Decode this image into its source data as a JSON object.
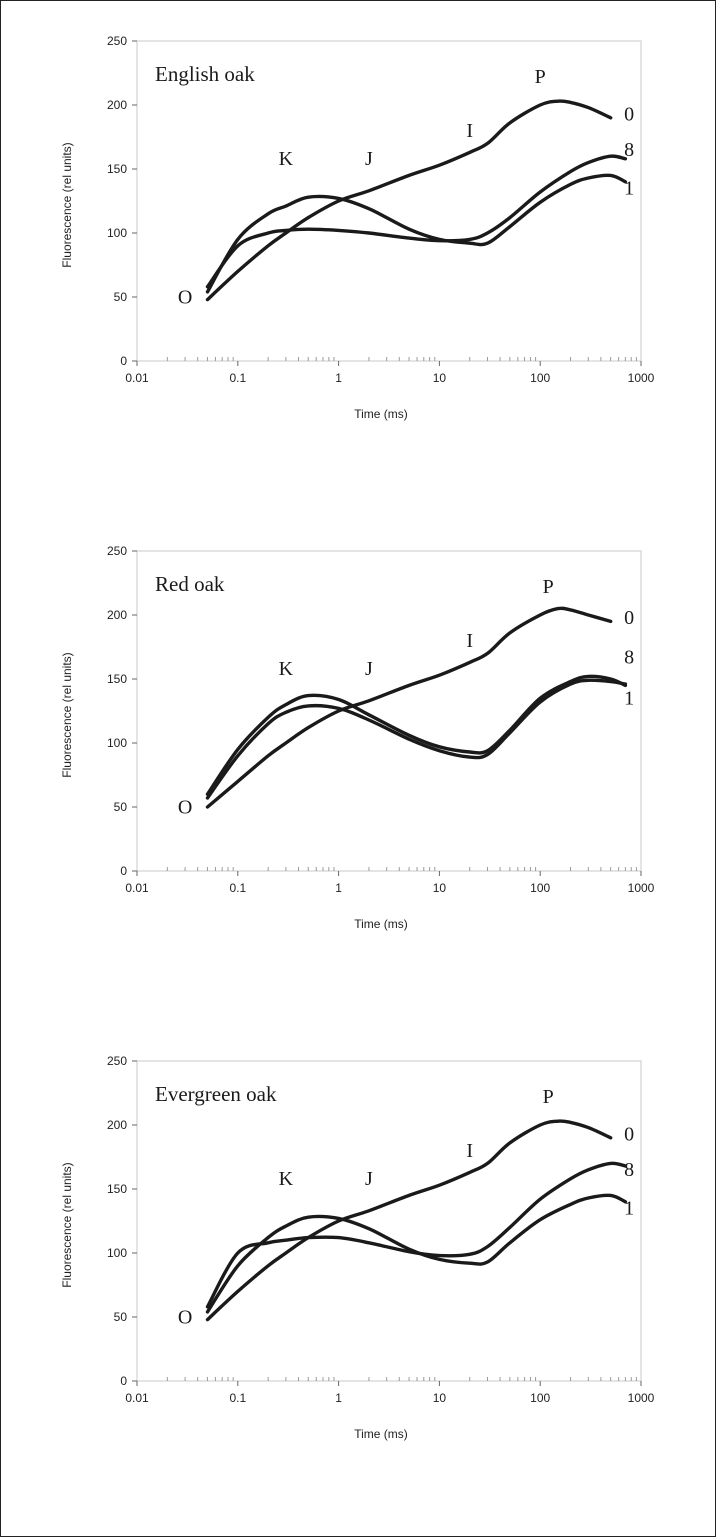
{
  "chart_data": [
    {
      "type": "line",
      "title": "English oak",
      "xlabel": "Time (ms)",
      "ylabel": "Fluorescence (rel units)",
      "x_scale": "log",
      "xlim": [
        0.01,
        1000
      ],
      "ylim": [
        0,
        250
      ],
      "x_ticks": [
        "0.01",
        "0.1",
        "1",
        "10",
        "100",
        "1000"
      ],
      "y_ticks": [
        "0",
        "50",
        "100",
        "150",
        "200",
        "250"
      ],
      "grid": false,
      "point_labels": [
        {
          "text": "O",
          "x": 0.03,
          "y": 45
        },
        {
          "text": "K",
          "x": 0.3,
          "y": 153
        },
        {
          "text": "J",
          "x": 2,
          "y": 153
        },
        {
          "text": "I",
          "x": 20,
          "y": 175
        },
        {
          "text": "P",
          "x": 100,
          "y": 217
        }
      ],
      "series_labels": [
        {
          "text": "0",
          "x": 680,
          "y": 188
        },
        {
          "text": "8",
          "x": 680,
          "y": 160
        },
        {
          "text": "1",
          "x": 680,
          "y": 130
        }
      ],
      "series": [
        {
          "name": "0",
          "x": [
            0.05,
            0.1,
            0.2,
            0.3,
            0.5,
            1,
            2,
            5,
            10,
            20,
            30,
            50,
            100,
            150,
            200,
            300,
            500
          ],
          "y": [
            48,
            70,
            90,
            100,
            112,
            125,
            133,
            145,
            153,
            163,
            170,
            186,
            200,
            203,
            202,
            198,
            190
          ]
        },
        {
          "name": "8",
          "x": [
            0.05,
            0.1,
            0.2,
            0.3,
            0.5,
            1,
            2,
            5,
            10,
            20,
            30,
            50,
            100,
            200,
            300,
            500,
            700
          ],
          "y": [
            58,
            90,
            100,
            102,
            103,
            102,
            100,
            96,
            94,
            95,
            100,
            112,
            132,
            148,
            155,
            160,
            158
          ]
        },
        {
          "name": "1",
          "x": [
            0.05,
            0.1,
            0.2,
            0.3,
            0.5,
            1,
            2,
            5,
            10,
            20,
            30,
            50,
            100,
            200,
            300,
            500,
            700
          ],
          "y": [
            54,
            95,
            115,
            121,
            128,
            127,
            119,
            103,
            95,
            92,
            92,
            105,
            124,
            138,
            143,
            145,
            140
          ]
        }
      ]
    },
    {
      "type": "line",
      "title": "Red oak",
      "xlabel": "Time (ms)",
      "ylabel": "Fluorescence (rel units)",
      "x_scale": "log",
      "xlim": [
        0.01,
        1000
      ],
      "ylim": [
        0,
        250
      ],
      "x_ticks": [
        "0.01",
        "0.1",
        "1",
        "10",
        "100",
        "1000"
      ],
      "y_ticks": [
        "0",
        "50",
        "100",
        "150",
        "200",
        "250"
      ],
      "grid": false,
      "point_labels": [
        {
          "text": "O",
          "x": 0.03,
          "y": 45
        },
        {
          "text": "K",
          "x": 0.3,
          "y": 153
        },
        {
          "text": "J",
          "x": 2,
          "y": 153
        },
        {
          "text": "I",
          "x": 20,
          "y": 175
        },
        {
          "text": "P",
          "x": 120,
          "y": 217
        }
      ],
      "series_labels": [
        {
          "text": "0",
          "x": 680,
          "y": 193
        },
        {
          "text": "8",
          "x": 680,
          "y": 162
        },
        {
          "text": "1",
          "x": 680,
          "y": 130
        }
      ],
      "series": [
        {
          "name": "0",
          "x": [
            0.05,
            0.1,
            0.2,
            0.3,
            0.5,
            1,
            2,
            5,
            10,
            20,
            30,
            50,
            100,
            150,
            200,
            300,
            500
          ],
          "y": [
            50,
            70,
            90,
            100,
            112,
            125,
            133,
            145,
            153,
            163,
            170,
            186,
            200,
            205,
            204,
            200,
            195
          ]
        },
        {
          "name": "8",
          "x": [
            0.05,
            0.1,
            0.2,
            0.3,
            0.5,
            1,
            2,
            5,
            10,
            20,
            30,
            50,
            100,
            200,
            300,
            500,
            700
          ],
          "y": [
            57,
            90,
            115,
            124,
            129,
            127,
            118,
            103,
            94,
            89,
            91,
            108,
            132,
            146,
            149,
            148,
            146
          ]
        },
        {
          "name": "1",
          "x": [
            0.05,
            0.1,
            0.2,
            0.3,
            0.5,
            1,
            2,
            5,
            10,
            20,
            30,
            50,
            100,
            200,
            300,
            500,
            700
          ],
          "y": [
            60,
            95,
            120,
            130,
            137,
            134,
            122,
            106,
            97,
            93,
            94,
            110,
            135,
            148,
            152,
            150,
            145
          ]
        }
      ]
    },
    {
      "type": "line",
      "title": "Evergreen oak",
      "xlabel": "Time (ms)",
      "ylabel": "Fluorescence (rel units)",
      "x_scale": "log",
      "xlim": [
        0.01,
        1000
      ],
      "ylim": [
        0,
        250
      ],
      "x_ticks": [
        "0.01",
        "0.1",
        "1",
        "10",
        "100",
        "1000"
      ],
      "y_ticks": [
        "0",
        "50",
        "100",
        "150",
        "200",
        "250"
      ],
      "grid": false,
      "point_labels": [
        {
          "text": "O",
          "x": 0.03,
          "y": 45
        },
        {
          "text": "K",
          "x": 0.3,
          "y": 153
        },
        {
          "text": "J",
          "x": 2,
          "y": 153
        },
        {
          "text": "I",
          "x": 20,
          "y": 175
        },
        {
          "text": "P",
          "x": 120,
          "y": 217
        }
      ],
      "series_labels": [
        {
          "text": "0",
          "x": 680,
          "y": 188
        },
        {
          "text": "8",
          "x": 680,
          "y": 160
        },
        {
          "text": "1",
          "x": 680,
          "y": 130
        }
      ],
      "series": [
        {
          "name": "0",
          "x": [
            0.05,
            0.1,
            0.2,
            0.3,
            0.5,
            1,
            2,
            5,
            10,
            20,
            30,
            50,
            100,
            150,
            200,
            300,
            500
          ],
          "y": [
            48,
            70,
            90,
            100,
            112,
            125,
            133,
            145,
            153,
            163,
            170,
            186,
            200,
            203,
            202,
            198,
            190
          ]
        },
        {
          "name": "8",
          "x": [
            0.05,
            0.1,
            0.2,
            0.3,
            0.5,
            1,
            2,
            5,
            10,
            20,
            30,
            50,
            100,
            200,
            300,
            500,
            700
          ],
          "y": [
            58,
            100,
            108,
            110,
            112,
            112,
            108,
            101,
            98,
            99,
            105,
            120,
            142,
            158,
            165,
            170,
            168
          ]
        },
        {
          "name": "1",
          "x": [
            0.05,
            0.1,
            0.2,
            0.3,
            0.5,
            1,
            2,
            5,
            10,
            20,
            30,
            50,
            100,
            200,
            300,
            500,
            700
          ],
          "y": [
            54,
            90,
            112,
            121,
            128,
            127,
            119,
            103,
            95,
            92,
            93,
            108,
            126,
            138,
            143,
            145,
            140
          ]
        }
      ]
    }
  ]
}
